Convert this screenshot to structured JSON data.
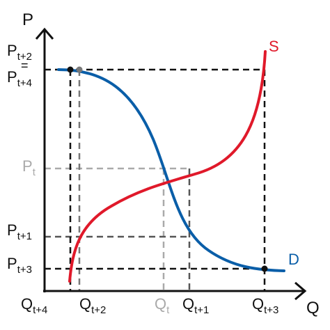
{
  "axes": {
    "y_label": "P",
    "x_label": "Q"
  },
  "curves": {
    "supply": {
      "label": "S",
      "color": "#e0192a"
    },
    "demand": {
      "label": "D",
      "color": "#0a5ea8"
    }
  },
  "price_labels": {
    "p_t2_t4_line1": {
      "base": "P",
      "sub": "t+2"
    },
    "p_t2_t4_eq": "=",
    "p_t2_t4_line2": {
      "base": "P",
      "sub": "t+4"
    },
    "p_t": {
      "base": "P",
      "sub": "t"
    },
    "p_t1": {
      "base": "P",
      "sub": "t+1"
    },
    "p_t3": {
      "base": "P",
      "sub": "t+3"
    }
  },
  "quantity_labels": {
    "q_t4": {
      "base": "Q",
      "sub": "t+4"
    },
    "q_t2": {
      "base": "Q",
      "sub": "t+2"
    },
    "q_t": {
      "base": "Q",
      "sub": "t"
    },
    "q_t1": {
      "base": "Q",
      "sub": "t+1"
    },
    "q_t3": {
      "base": "Q",
      "sub": "t+3"
    }
  },
  "colors": {
    "axis": "#111111",
    "guide_black": "#111111",
    "guide_dark_gray": "#555555",
    "guide_light_gray": "#aaaaaa",
    "equilibrium_dot_black": "#111111",
    "equilibrium_dot_gray": "#777777"
  }
}
